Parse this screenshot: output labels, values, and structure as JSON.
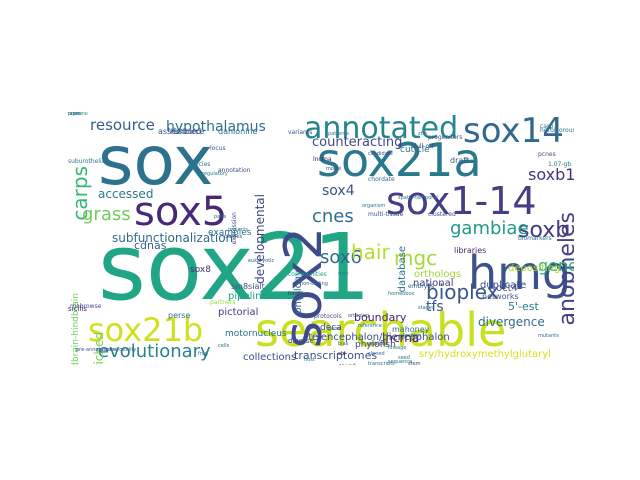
{
  "cloud": {
    "words": [
      {
        "text": "sox21",
        "color": "#21a685"
      },
      {
        "text": "sox",
        "color": "#2c728e"
      },
      {
        "text": "searchable",
        "color": "#c8e020"
      },
      {
        "text": "sox21a",
        "color": "#2a788e"
      },
      {
        "text": "hmg",
        "color": "#3b528b"
      },
      {
        "text": "sox1-14",
        "color": "#433e85"
      },
      {
        "text": "sox5",
        "color": "#482878"
      },
      {
        "text": "sox2",
        "color": "#3e4a89"
      },
      {
        "text": "sox14",
        "color": "#31688e"
      },
      {
        "text": "annotated",
        "color": "#25858e"
      },
      {
        "text": "sox21b",
        "color": "#d0e11c"
      },
      {
        "text": "bioplex",
        "color": "#3a548c"
      },
      {
        "text": "evolutionary",
        "color": "#26828e"
      },
      {
        "text": "anopheles",
        "color": "#414287"
      },
      {
        "text": "soxb",
        "color": "#443983"
      },
      {
        "text": "carps",
        "color": "#35b779"
      },
      {
        "text": "grass",
        "color": "#6ece58"
      },
      {
        "text": "gambiae",
        "color": "#1e9b8a"
      },
      {
        "text": "sox6",
        "color": "#31688e"
      },
      {
        "text": "hair",
        "color": "#b5de2b"
      },
      {
        "text": "resource",
        "color": "#355f8d"
      },
      {
        "text": "hypothalamus",
        "color": "#2d708e"
      },
      {
        "text": "counteracting",
        "color": "#3e4989"
      },
      {
        "text": "soxb1",
        "color": "#46327e"
      },
      {
        "text": "sox4",
        "color": "#3b528b"
      },
      {
        "text": "cnes",
        "color": "#2d708e"
      },
      {
        "text": "accessed",
        "color": "#2a788e"
      },
      {
        "text": "subfunctionalization",
        "color": "#306a8e"
      },
      {
        "text": "genome",
        "color": "#27ad81"
      },
      {
        "text": "mgc",
        "color": "#a2da37"
      },
      {
        "text": "tfs",
        "color": "#39558c"
      },
      {
        "text": "divergence",
        "color": "#2e6e8e"
      },
      {
        "text": "developmental",
        "color": "#3f4788"
      },
      {
        "text": "boundary",
        "color": "#482475"
      },
      {
        "text": "foregut-enriched",
        "color": "#7ad151"
      },
      {
        "text": "transcriptomes",
        "color": "#3b528b"
      },
      {
        "text": "collections",
        "color": "#3e4c8a"
      },
      {
        "text": "sry/hydroxymethylglutaryl",
        "color": "#d2e21b"
      },
      {
        "text": "5'-est",
        "color": "#2a788e"
      },
      {
        "text": "depositing",
        "color": "#addc30"
      },
      {
        "text": "orthologs",
        "color": "#9bd93c"
      },
      {
        "text": "duplicate",
        "color": "#3e4a89"
      },
      {
        "text": "oct4",
        "color": "#3a548c"
      },
      {
        "text": "lncrna",
        "color": "#471063"
      },
      {
        "text": "database",
        "color": "#2c738e"
      },
      {
        "text": "ontology",
        "color": "#31688e"
      },
      {
        "text": "national",
        "color": "#443983"
      },
      {
        "text": "cdnas",
        "color": "#33638d"
      },
      {
        "text": "examples",
        "color": "#2a788e"
      },
      {
        "text": "sox8",
        "color": "#472c7a"
      },
      {
        "text": "mahoney",
        "color": "#2d708e"
      },
      {
        "text": "deca",
        "color": "#3f4788"
      },
      {
        "text": "phylofish",
        "color": "#404688"
      },
      {
        "text": "motornucleus",
        "color": "#2c728e"
      },
      {
        "text": "telencephalon/diencephalon",
        "color": "#3e4a89"
      },
      {
        "text": "midbrain-hindbrain",
        "color": "#73d056"
      },
      {
        "text": "cuticle",
        "color": "#2c728e"
      },
      {
        "text": "draft",
        "color": "#3b528b"
      },
      {
        "text": "1.07-gb",
        "color": "#2a788e"
      },
      {
        "text": "pcnes",
        "color": "#3e4c8a"
      },
      {
        "text": "libraries",
        "color": "#481f70"
      },
      {
        "text": "networks",
        "color": "#3b528b"
      },
      {
        "text": "diverse",
        "color": "#3e4c8a"
      },
      {
        "text": "pipeline",
        "color": "#1fa187"
      },
      {
        "text": "pictorial",
        "color": "#443a83"
      },
      {
        "text": "sm8sialt",
        "color": "#3b528b"
      },
      {
        "text": "perse",
        "color": "#2c728e"
      },
      {
        "text": "sicilis",
        "color": "#481b6d"
      },
      {
        "text": "partners",
        "color": "#95d840"
      },
      {
        "text": "resource",
        "color": "#355f8d"
      },
      {
        "text": "assembled",
        "color": "#3e4c8a"
      },
      {
        "text": "danionine",
        "color": "#2c728e"
      },
      {
        "text": "tet-on",
        "color": "#31688e"
      },
      {
        "text": "suburothelial",
        "color": "#2a788e"
      },
      {
        "text": "rnabrowse",
        "color": "#3e4c8a"
      },
      {
        "text": "pre-annotations",
        "color": "#3e4c8a"
      },
      {
        "text": "genome-quality",
        "color": "#355f8d"
      },
      {
        "text": "progenitors",
        "color": "#3b528b"
      },
      {
        "text": "causd",
        "color": "#482878"
      },
      {
        "text": "biomarkers",
        "color": "#2c728e"
      },
      {
        "text": "hmg-b",
        "color": "#1f988b"
      },
      {
        "text": "ebi",
        "color": "#440154"
      },
      {
        "text": "lncrna",
        "color": "#471063"
      },
      {
        "text": "eukaryotic",
        "color": "#3b528b"
      },
      {
        "text": "projects",
        "color": "#2a788e"
      },
      {
        "text": "classes",
        "color": "#3e4c8a"
      },
      {
        "text": "pairs",
        "color": "#31688e"
      },
      {
        "text": "patterns",
        "color": "#2c728e"
      },
      {
        "text": "non-coding",
        "color": "#355f8d"
      },
      {
        "text": "ortholog",
        "color": "#3b528b"
      },
      {
        "text": "reference",
        "color": "#2a788e"
      },
      {
        "text": "gene",
        "color": "#31688e"
      },
      {
        "text": "organism",
        "color": "#2c728e"
      },
      {
        "text": "candidate",
        "color": "#3e4c8a"
      },
      {
        "text": "fungi",
        "color": "#482878"
      },
      {
        "text": "frog",
        "color": "#31688e"
      },
      {
        "text": "spatio-temporal",
        "color": "#2c728e"
      },
      {
        "text": "expression",
        "color": "#3b528b"
      },
      {
        "text": "regulatory",
        "color": "#2a788e"
      },
      {
        "text": "model",
        "color": "#3e4c8a"
      },
      {
        "text": "chordate",
        "color": "#31688e"
      },
      {
        "text": "species",
        "color": "#2c728e"
      },
      {
        "text": "communities",
        "color": "#1f988b"
      },
      {
        "text": "locus",
        "color": "#3b528b"
      },
      {
        "text": "trait",
        "color": "#2a788e"
      },
      {
        "text": "variants",
        "color": "#3e4c8a"
      },
      {
        "text": "homeobox",
        "color": "#2c728e"
      },
      {
        "text": "stages",
        "color": "#31688e"
      },
      {
        "text": "embryos",
        "color": "#355f8d"
      },
      {
        "text": "full-orf",
        "color": "#3e4c8a"
      },
      {
        "text": "herbivorous",
        "color": "#2c728e"
      },
      {
        "text": "fashion",
        "color": "#31688e"
      },
      {
        "text": "protocols",
        "color": "#3b528b"
      },
      {
        "text": "carp",
        "color": "#2a788e"
      },
      {
        "text": "annotation",
        "color": "#3e4c8a"
      },
      {
        "text": "mutants",
        "color": "#31688e"
      },
      {
        "text": "zfin",
        "color": "#2c728e"
      },
      {
        "text": "clustered",
        "color": "#3e4c8a"
      },
      {
        "text": "multi-tissue",
        "color": "#3b528b"
      },
      {
        "text": "lineage",
        "color": "#2a788e"
      },
      {
        "text": "transcripts",
        "color": "#31688e"
      },
      {
        "text": "analysis",
        "color": "#3e4c8a"
      },
      {
        "text": "sequence",
        "color": "#2c728e"
      },
      {
        "text": "cloned",
        "color": "#31688e"
      },
      {
        "text": "seed",
        "color": "#2c728e"
      },
      {
        "text": "bias",
        "color": "#3b528b"
      },
      {
        "text": "host",
        "color": "#2a788e"
      },
      {
        "text": "stem",
        "color": "#3e4c8a"
      },
      {
        "text": "cells",
        "color": "#31688e"
      },
      {
        "text": "cnes",
        "color": "#2d708e"
      },
      {
        "text": "pipeline",
        "color": "#1fa187"
      },
      {
        "text": "notes",
        "color": "#3b528b"
      }
    ]
  }
}
